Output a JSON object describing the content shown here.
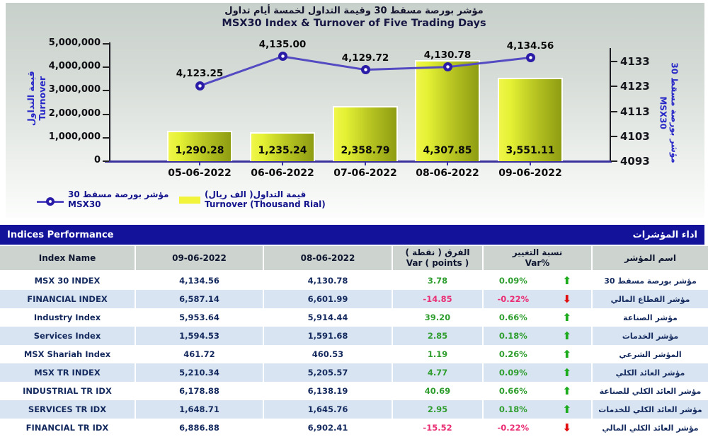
{
  "chart_data": {
    "type": "bar+line",
    "title_ar": "مؤشر بورصة مسقط 30 وقيمة التداول لخمسة أيام تداول",
    "title_en": "MSX30 Index & Turnover of Five Trading Days",
    "categories": [
      "05-06-2022",
      "06-06-2022",
      "07-06-2022",
      "08-06-2022",
      "09-06-2022"
    ],
    "series": [
      {
        "name": "Turnover (Thousand Rial)",
        "name_ar": "قيمة التداول( الف ريال)",
        "type": "bar",
        "axis": "left",
        "unit": "thousand rial",
        "values": [
          1290.28,
          1235.24,
          2358.79,
          4307.85,
          3551.11
        ],
        "labels": [
          "1,290.28",
          "1,235.24",
          "2,358.79",
          "4,307.85",
          "3,551.11"
        ]
      },
      {
        "name": "MSX30",
        "name_ar": "مؤشر بورصة مسقط 30",
        "type": "line",
        "axis": "right",
        "values": [
          4123.25,
          4135.0,
          4129.72,
          4130.78,
          4134.56
        ],
        "labels": [
          "4,123.25",
          "4,135.00",
          "4,129.72",
          "4,130.78",
          "4,134.56"
        ]
      }
    ],
    "left_axis": {
      "label_ar": "قيمة التداول",
      "label_en": "Turnover",
      "min": 0,
      "max": 5000000,
      "ticks": [
        "5,000,000",
        "4,000,000",
        "3,000,000",
        "2,000,000",
        "1,000,000",
        "0"
      ]
    },
    "right_axis": {
      "label_ar": "مؤشر بورصة مسقط 30",
      "label_en": "MSX30",
      "min": 4093,
      "max": 4133,
      "ticks": [
        "4133",
        "4123",
        "4113",
        "4103",
        "4093"
      ]
    },
    "grid": false,
    "legend_position": "bottom-left"
  },
  "table": {
    "title_en": "Indices Performance",
    "title_ar": "اداء المؤشرات",
    "headers": {
      "name": "Index Name",
      "date1": "09-06-2022",
      "date2": "08-06-2022",
      "var_ar": "الفرق ( نقطة )",
      "var_en": "Var ( points )",
      "pct_ar": "نسبة التغيير",
      "pct_en": "Var%",
      "name_ar": "اسم المؤشر"
    },
    "rows": [
      {
        "name": "MSX 30 INDEX",
        "v1": "4,134.56",
        "v2": "4,130.78",
        "var": "3.78",
        "pct": "0.09%",
        "dir": "up",
        "ar": "مؤشر بورصة مسقط 30"
      },
      {
        "name": "FINANCIAL INDEX",
        "v1": "6,587.14",
        "v2": "6,601.99",
        "var": "-14.85",
        "pct": "-0.22%",
        "dir": "down",
        "ar": "مؤشر القطاع المالي"
      },
      {
        "name": "Industry Index",
        "v1": "5,953.64",
        "v2": "5,914.44",
        "var": "39.20",
        "pct": "0.66%",
        "dir": "up",
        "ar": "مؤشر الصناعة"
      },
      {
        "name": "Services Index",
        "v1": "1,594.53",
        "v2": "1,591.68",
        "var": "2.85",
        "pct": "0.18%",
        "dir": "up",
        "ar": "مؤشر الخدمات"
      },
      {
        "name": "MSX Shariah Index",
        "v1": "461.72",
        "v2": "460.53",
        "var": "1.19",
        "pct": "0.26%",
        "dir": "up",
        "ar": "المؤشر الشرعي"
      },
      {
        "name": "MSX TR INDEX",
        "v1": "5,210.34",
        "v2": "5,205.57",
        "var": "4.77",
        "pct": "0.09%",
        "dir": "up",
        "ar": "مؤشر العائد الكلي"
      },
      {
        "name": "INDUSTRIAL TR IDX",
        "v1": "6,178.88",
        "v2": "6,138.19",
        "var": "40.69",
        "pct": "0.66%",
        "dir": "up",
        "ar": "مؤشر العائد الكلي للصناعة"
      },
      {
        "name": "SERVICES TR IDX",
        "v1": "1,648.71",
        "v2": "1,645.76",
        "var": "2.95",
        "pct": "0.18%",
        "dir": "up",
        "ar": "مؤشر العائد الكلي للخدمات"
      },
      {
        "name": "FINANCIAL TR IDX",
        "v1": "6,886.88",
        "v2": "6,902.41",
        "var": "-15.52",
        "pct": "-0.22%",
        "dir": "down",
        "ar": "مؤشر العائد الكلي المالي"
      }
    ]
  },
  "icons": {
    "up_arrow": "⬆",
    "down_arrow": "⬇"
  },
  "colors": {
    "bar_gradient_light": "#e9f23a",
    "bar_gradient_dark": "#8e9c12",
    "line": "#544bc2",
    "marker": "#2a1ca6",
    "title_bar_navy": "#12129a",
    "header_row_bg": "#cdd3ce",
    "alt_row_blue": "#d8e4f1",
    "positive_green": "#2f9e2f",
    "negative_pink": "#ea2e74",
    "arrow_up_green": "#1cab1c",
    "arrow_down_red": "#e00e0e",
    "axis_label_blue": "#2929c8"
  }
}
